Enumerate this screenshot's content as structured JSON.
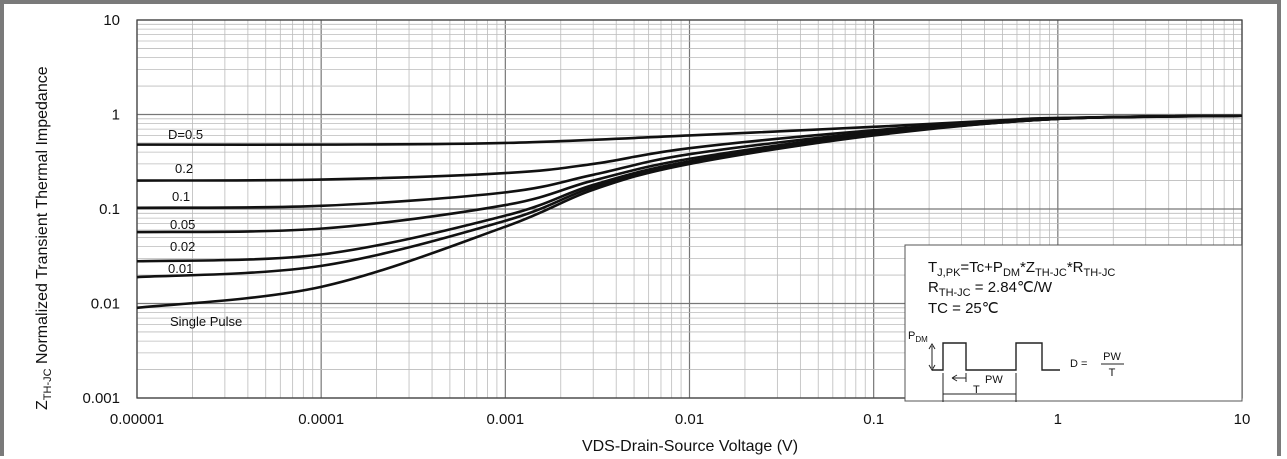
{
  "chart_data": {
    "type": "line",
    "xlabel": "VDS-Drain-Source Voltage (V)",
    "ylabel_main": "Z",
    "ylabel_sub": "TH-JC",
    "ylabel_rest": " Normalized Transient Thermal Impedance",
    "xscale": "log",
    "yscale": "log",
    "xlim": [
      1e-05,
      10
    ],
    "ylim": [
      0.001,
      10
    ],
    "grid": true,
    "x_ticks": [
      "0.00001",
      "0.0001",
      "0.001",
      "0.01",
      "0.1",
      "1",
      "10"
    ],
    "y_ticks": [
      "10",
      "1",
      "0.1",
      "0.01",
      "0.001"
    ],
    "series": [
      {
        "name": "D=0.5",
        "points": [
          [
            1e-05,
            0.48
          ],
          [
            0.0001,
            0.48
          ],
          [
            0.001,
            0.5
          ],
          [
            0.01,
            0.6
          ],
          [
            0.1,
            0.74
          ],
          [
            0.5,
            0.87
          ],
          [
            1,
            0.92
          ],
          [
            10,
            0.97
          ]
        ]
      },
      {
        "name": "0.2",
        "points": [
          [
            1e-05,
            0.2
          ],
          [
            0.0001,
            0.205
          ],
          [
            0.001,
            0.24
          ],
          [
            0.003,
            0.3
          ],
          [
            0.01,
            0.44
          ],
          [
            0.1,
            0.68
          ],
          [
            1,
            0.91
          ],
          [
            10,
            0.97
          ]
        ]
      },
      {
        "name": "0.1",
        "points": [
          [
            1e-05,
            0.103
          ],
          [
            0.0001,
            0.108
          ],
          [
            0.001,
            0.15
          ],
          [
            0.003,
            0.23
          ],
          [
            0.01,
            0.38
          ],
          [
            0.1,
            0.65
          ],
          [
            1,
            0.9
          ],
          [
            10,
            0.97
          ]
        ]
      },
      {
        "name": "0.05",
        "points": [
          [
            1e-05,
            0.057
          ],
          [
            0.0001,
            0.062
          ],
          [
            0.001,
            0.11
          ],
          [
            0.003,
            0.2
          ],
          [
            0.01,
            0.34
          ],
          [
            0.1,
            0.63
          ],
          [
            1,
            0.9
          ],
          [
            10,
            0.97
          ]
        ]
      },
      {
        "name": "0.02",
        "points": [
          [
            1e-05,
            0.028
          ],
          [
            0.0001,
            0.033
          ],
          [
            0.001,
            0.085
          ],
          [
            0.003,
            0.18
          ],
          [
            0.01,
            0.32
          ],
          [
            0.1,
            0.62
          ],
          [
            1,
            0.9
          ],
          [
            10,
            0.97
          ]
        ]
      },
      {
        "name": "0.01",
        "points": [
          [
            1e-05,
            0.019
          ],
          [
            0.0001,
            0.025
          ],
          [
            0.001,
            0.075
          ],
          [
            0.003,
            0.17
          ],
          [
            0.01,
            0.31
          ],
          [
            0.1,
            0.61
          ],
          [
            1,
            0.9
          ],
          [
            10,
            0.97
          ]
        ]
      },
      {
        "name": "Single Pulse",
        "points": [
          [
            1e-05,
            0.009
          ],
          [
            0.0001,
            0.015
          ],
          [
            0.001,
            0.065
          ],
          [
            0.003,
            0.16
          ],
          [
            0.01,
            0.3
          ],
          [
            0.1,
            0.6
          ],
          [
            1,
            0.9
          ],
          [
            10,
            0.97
          ]
        ]
      }
    ],
    "annotation": {
      "line1_a": "T",
      "line1_a_sub": "J,PK",
      "line1_b": "=Tc+P",
      "line1_b_sub": "DM",
      "line1_c": "*Z",
      "line1_c_sub": "TH-JC",
      "line1_d": "*R",
      "line1_d_sub": "TH-JC",
      "line2_a": "R",
      "line2_a_sub": "TH-JC",
      "line2_b": " = 2.84℃/W",
      "line3": "TC = 25℃",
      "pulse_label": "P",
      "pulse_label_sub": "DM",
      "pw_label": "PW",
      "t_label": "T",
      "d_eq": "D = ",
      "frac_num": "PW",
      "frac_den": "T"
    }
  }
}
